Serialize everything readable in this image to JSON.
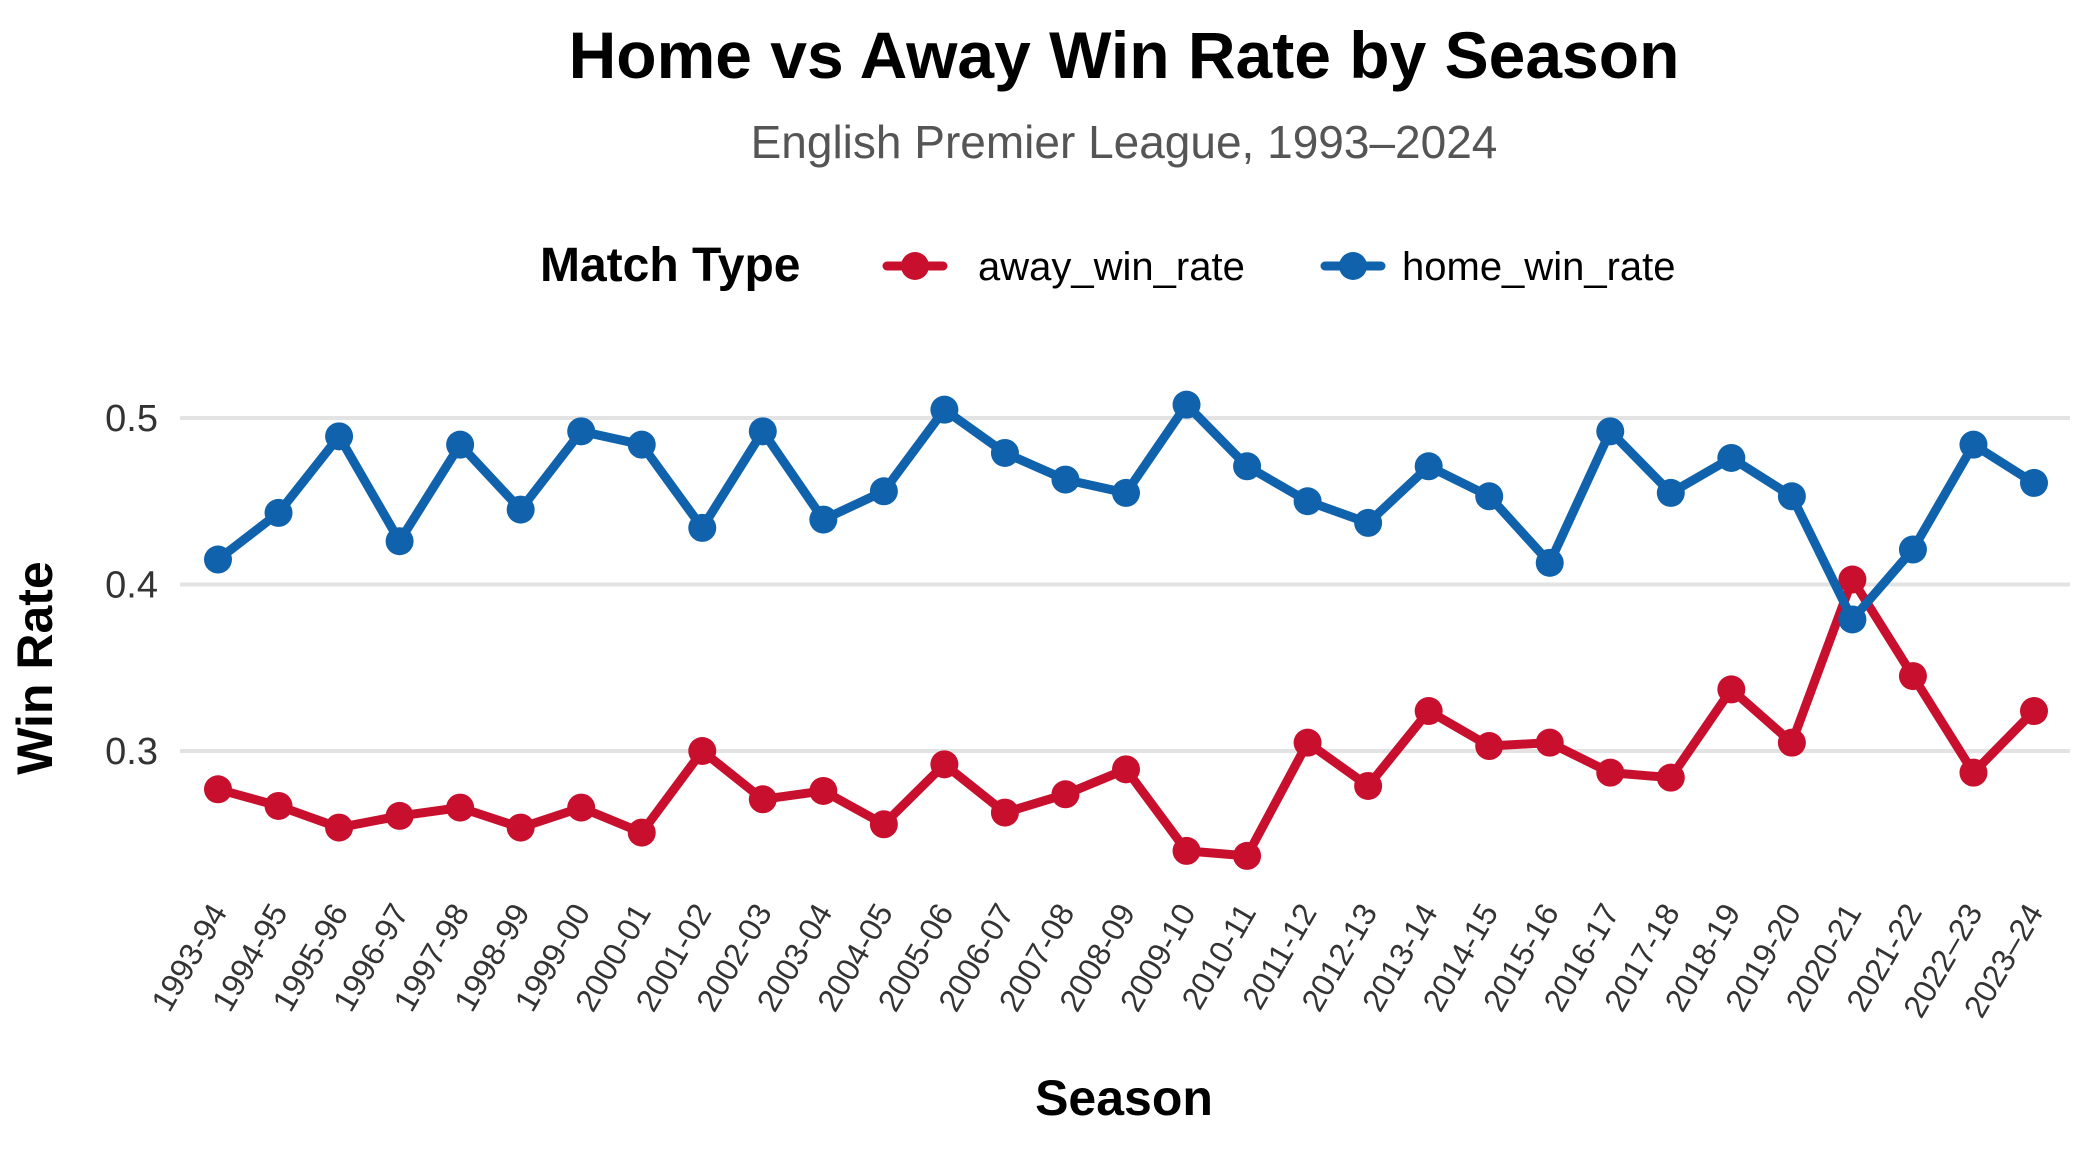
{
  "chart_data": {
    "type": "line",
    "title": "Home vs Away Win Rate by Season",
    "subtitle": "English Premier League, 1993–2024",
    "xlabel": "Season",
    "ylabel": "Win Rate",
    "legend_title": "Match Type",
    "legend_position": "top",
    "grid": true,
    "ylim": [
      0.21,
      0.525
    ],
    "yticks": [
      0.3,
      0.4,
      0.5
    ],
    "ytick_labels": [
      "0.3",
      "0.4",
      "0.5"
    ],
    "categories": [
      "1993-94",
      "1994-95",
      "1995-96",
      "1996-97",
      "1997-98",
      "1998-99",
      "1999-00",
      "2000-01",
      "2001-02",
      "2002-03",
      "2003-04",
      "2004-05",
      "2005-06",
      "2006-07",
      "2007-08",
      "2008-09",
      "2009-10",
      "2010-11",
      "2011-12",
      "2012-13",
      "2013-14",
      "2014-15",
      "2015-16",
      "2016-17",
      "2017-18",
      "2018-19",
      "2019-20",
      "2020-21",
      "2021-22",
      "2022–23",
      "2023–24"
    ],
    "series": [
      {
        "name": "away_win_rate",
        "color": "#c8102e",
        "values": [
          0.277,
          0.267,
          0.254,
          0.261,
          0.266,
          0.254,
          0.266,
          0.251,
          0.3,
          0.271,
          0.276,
          0.256,
          0.292,
          0.263,
          0.274,
          0.289,
          0.24,
          0.237,
          0.305,
          0.279,
          0.324,
          0.303,
          0.305,
          0.287,
          0.284,
          0.337,
          0.305,
          0.403,
          0.345,
          0.287,
          0.324
        ]
      },
      {
        "name": "home_win_rate",
        "color": "#0f62ab",
        "values": [
          0.415,
          0.443,
          0.489,
          0.426,
          0.484,
          0.445,
          0.492,
          0.484,
          0.434,
          0.492,
          0.439,
          0.456,
          0.505,
          0.479,
          0.463,
          0.455,
          0.508,
          0.471,
          0.45,
          0.437,
          0.471,
          0.453,
          0.413,
          0.492,
          0.455,
          0.476,
          0.453,
          0.379,
          0.421,
          0.484,
          0.461
        ]
      }
    ]
  }
}
